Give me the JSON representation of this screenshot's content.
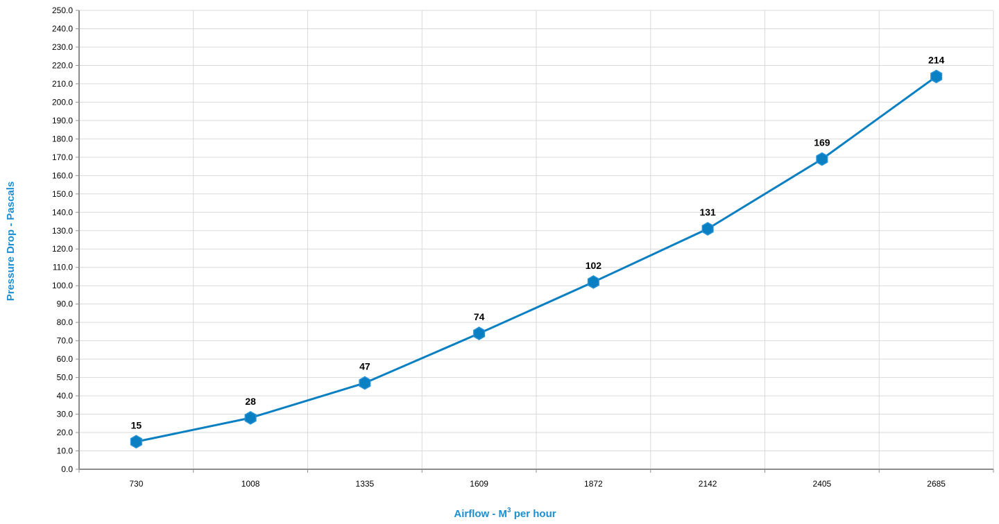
{
  "chart_data": {
    "type": "line",
    "categories": [
      "730",
      "1008",
      "1335",
      "1609",
      "1872",
      "2142",
      "2405",
      "2685"
    ],
    "series": [
      {
        "values": [
          15,
          28,
          47,
          74,
          102,
          131,
          169,
          214
        ]
      }
    ],
    "data_labels": [
      "15",
      "28",
      "47",
      "74",
      "102",
      "131",
      "169",
      "214"
    ],
    "xlabel_main": "Airflow - M",
    "xlabel_sup": "3",
    "xlabel_tail": " per hour",
    "ylabel": "Pressure Drop - Pascals",
    "ylim": [
      0,
      250
    ],
    "ytick_step": 10,
    "ytick_labels": [
      "0.0",
      "10.0",
      "20.0",
      "30.0",
      "40.0",
      "50.0",
      "60.0",
      "70.0",
      "80.0",
      "90.0",
      "100.0",
      "110.0",
      "120.0",
      "130.0",
      "140.0",
      "150.0",
      "160.0",
      "170.0",
      "180.0",
      "190.0",
      "200.0",
      "210.0",
      "220.0",
      "230.0",
      "240.0",
      "250.0"
    ],
    "grid": true,
    "legend": "none",
    "colors": {
      "line": "#0a7fc2",
      "marker_fill": "#0a7fc2",
      "marker_stroke": "#2a93d5",
      "grid": "#d9d9d9",
      "axis": "#8c8c8c",
      "axis_title": "#1b8fd2"
    }
  }
}
